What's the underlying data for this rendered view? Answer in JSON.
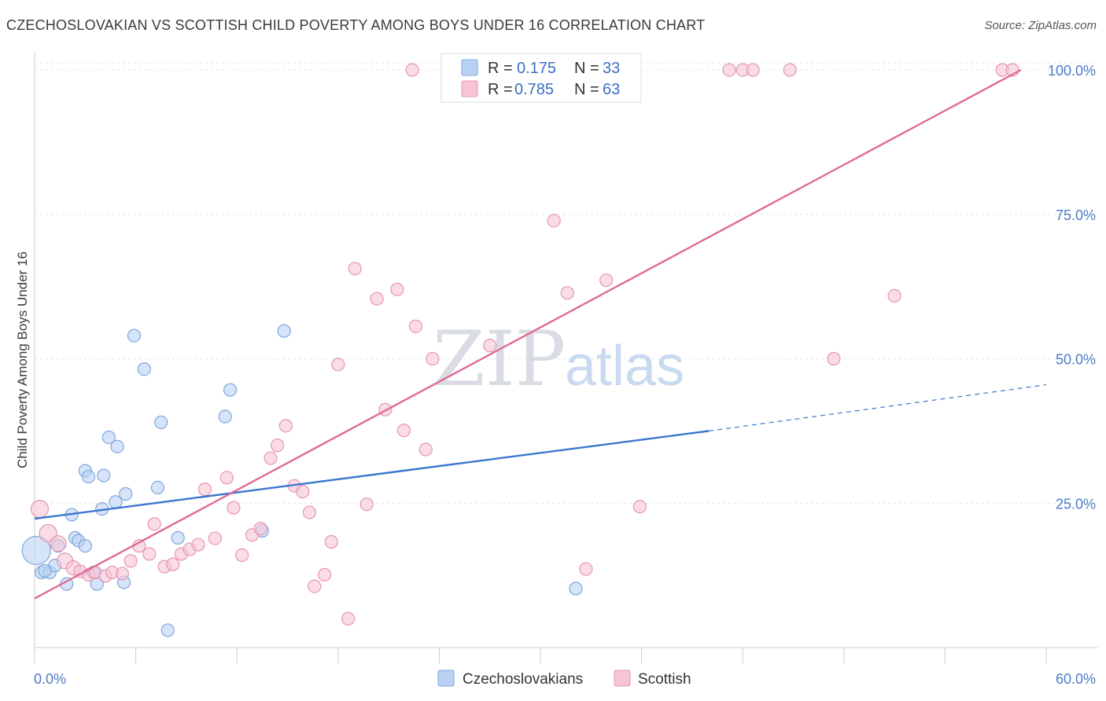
{
  "title": "CZECHOSLOVAKIAN VS SCOTTISH CHILD POVERTY AMONG BOYS UNDER 16 CORRELATION CHART",
  "source": "Source: ZipAtlas.com",
  "watermark": {
    "zip": "ZIP",
    "atlas": "atlas"
  },
  "colors": {
    "czech": "#3a76d0",
    "czech_fill": "#b9d2f3",
    "scottish": "#e06b95",
    "scottish_fill": "#f7c4d5",
    "tick": "#4a7cc9"
  },
  "legend": {
    "r_label": "R =",
    "n_label": "N =",
    "rows": [
      {
        "r": "0.175",
        "n": "33"
      },
      {
        "r": "0.785",
        "n": "63"
      }
    ]
  },
  "chart_data": {
    "type": "scatter",
    "xlabel": "",
    "ylabel": "Child Poverty Among Boys Under 16",
    "xlim": [
      0,
      60
    ],
    "ylim": [
      0,
      100
    ],
    "x_tick_labels": {
      "min": "0.0%",
      "max": "60.0%"
    },
    "y_tick_labels": [
      "25.0%",
      "50.0%",
      "75.0%",
      "100.0%"
    ],
    "y_ticks": [
      25,
      50,
      75,
      100
    ],
    "grid": true,
    "legend_position": "top-center",
    "series": [
      {
        "name": "Czechoslovakians",
        "trend": {
          "x0": 0,
          "y0": 22.3,
          "x1": 40,
          "y1": 37.5,
          "dash_to_x": 60,
          "dash_to_y": 45.5
        },
        "points": [
          [
            0.1,
            16.8,
            18
          ],
          [
            0.4,
            13.0,
            8
          ],
          [
            0.9,
            13.0,
            8
          ],
          [
            1.2,
            14.2,
            8
          ],
          [
            1.4,
            17.6,
            8
          ],
          [
            1.9,
            11.0,
            8
          ],
          [
            2.2,
            23.0,
            8
          ],
          [
            2.4,
            19.0,
            8
          ],
          [
            2.6,
            18.5,
            8
          ],
          [
            3.0,
            17.6,
            8
          ],
          [
            3.0,
            30.6,
            8
          ],
          [
            3.2,
            29.6,
            8
          ],
          [
            3.5,
            13.0,
            8
          ],
          [
            3.7,
            11.0,
            8
          ],
          [
            4.0,
            24.0,
            8
          ],
          [
            4.1,
            29.8,
            8
          ],
          [
            4.4,
            36.4,
            8
          ],
          [
            4.8,
            25.2,
            8
          ],
          [
            4.9,
            34.8,
            8
          ],
          [
            5.3,
            11.3,
            8
          ],
          [
            5.4,
            26.6,
            8
          ],
          [
            5.9,
            54.0,
            8
          ],
          [
            6.5,
            48.2,
            8
          ],
          [
            7.3,
            27.7,
            8
          ],
          [
            7.5,
            39.0,
            8
          ],
          [
            7.9,
            3.0,
            8
          ],
          [
            8.5,
            19.0,
            8
          ],
          [
            11.3,
            40.0,
            8
          ],
          [
            11.6,
            44.6,
            8
          ],
          [
            13.5,
            20.2,
            8
          ],
          [
            14.8,
            54.8,
            8
          ],
          [
            32.1,
            10.2,
            8
          ],
          [
            0.6,
            13.3,
            8
          ]
        ]
      },
      {
        "name": "Scottish",
        "trend": {
          "x0": 0,
          "y0": 8.5,
          "x1": 58.5,
          "y1": 100
        },
        "points": [
          [
            0.3,
            24.0,
            11
          ],
          [
            0.8,
            19.8,
            11
          ],
          [
            1.4,
            18.0,
            10
          ],
          [
            1.8,
            15.0,
            10
          ],
          [
            2.3,
            13.8,
            9
          ],
          [
            2.7,
            13.2,
            8
          ],
          [
            3.2,
            12.6,
            8
          ],
          [
            3.6,
            13.0,
            8
          ],
          [
            4.2,
            12.4,
            8
          ],
          [
            4.6,
            13.0,
            8
          ],
          [
            5.2,
            12.8,
            8
          ],
          [
            5.7,
            15.0,
            8
          ],
          [
            6.2,
            17.6,
            8
          ],
          [
            6.8,
            16.2,
            8
          ],
          [
            7.1,
            21.4,
            8
          ],
          [
            7.7,
            14.0,
            8
          ],
          [
            8.2,
            14.4,
            8
          ],
          [
            8.7,
            16.2,
            8
          ],
          [
            9.2,
            17.0,
            8
          ],
          [
            9.7,
            17.8,
            8
          ],
          [
            10.1,
            27.4,
            8
          ],
          [
            10.7,
            18.9,
            8
          ],
          [
            11.4,
            29.4,
            8
          ],
          [
            11.8,
            24.2,
            8
          ],
          [
            12.3,
            16.0,
            8
          ],
          [
            12.9,
            19.5,
            8
          ],
          [
            13.4,
            20.6,
            8
          ],
          [
            14.0,
            32.8,
            8
          ],
          [
            14.4,
            35.0,
            8
          ],
          [
            14.9,
            38.4,
            8
          ],
          [
            15.4,
            28.0,
            8
          ],
          [
            15.9,
            27.0,
            8
          ],
          [
            16.3,
            23.4,
            8
          ],
          [
            16.6,
            10.6,
            8
          ],
          [
            17.2,
            12.6,
            8
          ],
          [
            17.6,
            18.3,
            8
          ],
          [
            18.0,
            49.0,
            8
          ],
          [
            18.6,
            5.0,
            8
          ],
          [
            19.0,
            65.6,
            8
          ],
          [
            19.7,
            24.8,
            8
          ],
          [
            20.3,
            60.4,
            8
          ],
          [
            20.8,
            41.2,
            8
          ],
          [
            21.5,
            62.0,
            8
          ],
          [
            21.9,
            37.6,
            8
          ],
          [
            22.4,
            100,
            8
          ],
          [
            22.6,
            55.6,
            8
          ],
          [
            23.2,
            34.3,
            8
          ],
          [
            23.6,
            50.0,
            8
          ],
          [
            25.3,
            100,
            8
          ],
          [
            27.0,
            52.3,
            8
          ],
          [
            30.8,
            73.9,
            8
          ],
          [
            31.6,
            61.4,
            8
          ],
          [
            32.7,
            13.6,
            8
          ],
          [
            33.9,
            63.6,
            8
          ],
          [
            35.9,
            24.4,
            8
          ],
          [
            41.2,
            100,
            8
          ],
          [
            42.0,
            100,
            8
          ],
          [
            42.6,
            100,
            8
          ],
          [
            44.8,
            100,
            8
          ],
          [
            47.4,
            50.0,
            8
          ],
          [
            51.0,
            60.9,
            8
          ],
          [
            57.4,
            100,
            8
          ],
          [
            58.0,
            100,
            8
          ]
        ]
      }
    ]
  }
}
